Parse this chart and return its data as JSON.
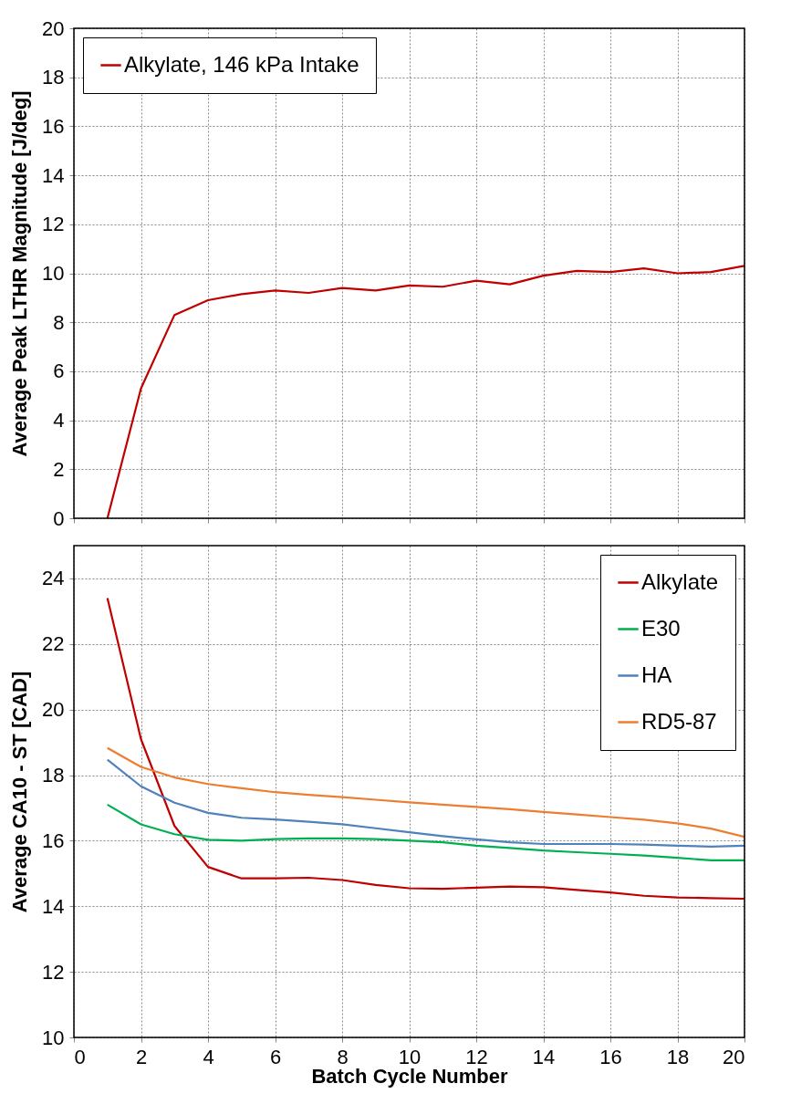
{
  "chart_data": [
    {
      "type": "line",
      "ylabel": "Average Peak LTHR Magnitude [J/deg]",
      "x": [
        1,
        2,
        3,
        4,
        5,
        6,
        7,
        8,
        9,
        10,
        11,
        12,
        13,
        14,
        15,
        16,
        17,
        18,
        19,
        20
      ],
      "xlim": [
        0,
        20
      ],
      "xticks": [
        0,
        2,
        4,
        6,
        8,
        10,
        12,
        14,
        16,
        18,
        20
      ],
      "ylim": [
        0,
        20
      ],
      "yticks": [
        0,
        2,
        4,
        6,
        8,
        10,
        12,
        14,
        16,
        18,
        20
      ],
      "tick_labels": "y",
      "grid": true,
      "legend": "top left",
      "series": [
        {
          "name": "Alkylate, 146 kPa Intake",
          "color": "#c00000",
          "values": [
            0,
            5.3,
            8.3,
            8.9,
            9.15,
            9.3,
            9.2,
            9.4,
            9.3,
            9.5,
            9.45,
            9.7,
            9.55,
            9.9,
            10.1,
            10.05,
            10.2,
            10.0,
            10.05,
            10.3
          ]
        }
      ]
    },
    {
      "type": "line",
      "xlabel": "Batch Cycle Number",
      "ylabel": "Average CA10 - ST [CAD]",
      "x": [
        1,
        2,
        3,
        4,
        5,
        6,
        7,
        8,
        9,
        10,
        11,
        12,
        13,
        14,
        15,
        16,
        17,
        18,
        19,
        20
      ],
      "xlim": [
        0,
        20
      ],
      "xticks": [
        0,
        2,
        4,
        6,
        8,
        10,
        12,
        14,
        16,
        18,
        20
      ],
      "ylim": [
        10,
        25
      ],
      "yticks": [
        10,
        12,
        14,
        16,
        18,
        20,
        22,
        24
      ],
      "grid": true,
      "legend": "top right",
      "series": [
        {
          "name": "Alkylate",
          "color": "#c00000",
          "values": [
            23.4,
            19.1,
            16.45,
            15.2,
            14.85,
            14.85,
            14.87,
            14.8,
            14.65,
            14.55,
            14.53,
            14.57,
            14.6,
            14.58,
            14.5,
            14.42,
            14.32,
            14.27,
            14.25,
            14.23
          ]
        },
        {
          "name": "E30",
          "color": "#00b050",
          "values": [
            17.1,
            16.5,
            16.2,
            16.03,
            16.0,
            16.05,
            16.07,
            16.07,
            16.05,
            16.0,
            15.95,
            15.85,
            15.78,
            15.7,
            15.65,
            15.6,
            15.55,
            15.48,
            15.4,
            15.4
          ]
        },
        {
          "name": "HA",
          "color": "#4f81bd",
          "values": [
            18.47,
            17.66,
            17.16,
            16.85,
            16.7,
            16.65,
            16.58,
            16.5,
            16.38,
            16.26,
            16.14,
            16.04,
            15.95,
            15.9,
            15.9,
            15.9,
            15.88,
            15.85,
            15.82,
            15.85
          ]
        },
        {
          "name": "RD5-87",
          "color": "#ed7d31",
          "values": [
            18.83,
            18.25,
            17.93,
            17.73,
            17.6,
            17.48,
            17.4,
            17.33,
            17.25,
            17.17,
            17.1,
            17.03,
            16.96,
            16.88,
            16.8,
            16.72,
            16.64,
            16.53,
            16.37,
            16.12
          ]
        }
      ]
    }
  ]
}
